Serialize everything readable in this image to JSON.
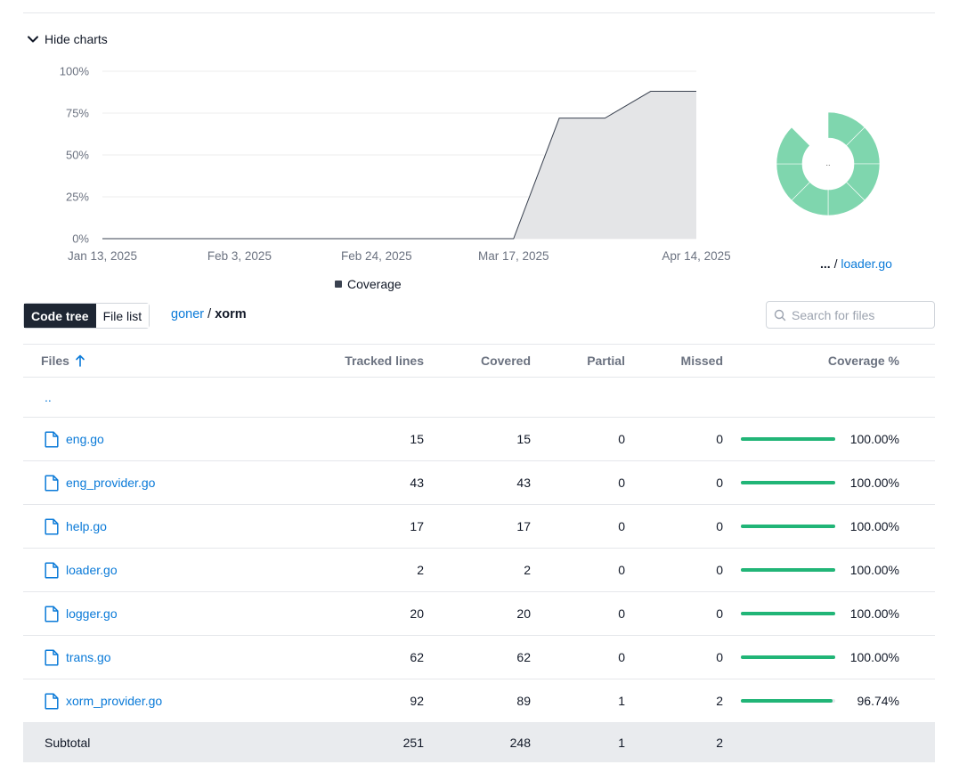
{
  "toggle_charts_label": "Hide charts",
  "chart_data": {
    "type": "area",
    "x_ticks": [
      "Jan 13, 2025",
      "Feb 3, 2025",
      "Feb 24, 2025",
      "Mar 17, 2025",
      "Apr 14, 2025"
    ],
    "x": [
      "2025-01-13",
      "2025-01-20",
      "2025-01-27",
      "2025-02-03",
      "2025-02-10",
      "2025-02-17",
      "2025-02-24",
      "2025-03-03",
      "2025-03-10",
      "2025-03-17",
      "2025-03-24",
      "2025-03-31",
      "2025-04-07",
      "2025-04-14"
    ],
    "series": [
      {
        "name": "Coverage",
        "values": [
          0,
          0,
          0,
          0,
          0,
          0,
          0,
          0,
          0,
          0,
          72,
          72,
          88,
          88
        ]
      }
    ],
    "y_ticks": [
      "0%",
      "25%",
      "50%",
      "75%",
      "100%"
    ],
    "ylim": [
      0,
      100
    ],
    "grid": true,
    "legend": "bottom-center",
    "colors": {
      "fill": "#e4e5e7",
      "line": "#3a4250",
      "grid": "#eeeeee"
    }
  },
  "sunburst": {
    "center_label": "..",
    "color": "#7fd6ae",
    "segments": 7
  },
  "selected_breadcrumb": {
    "ellipsis": "...",
    "separator": "/",
    "file": "loader.go"
  },
  "view_toggle": {
    "code_tree": "Code tree",
    "file_list": "File list"
  },
  "path": {
    "root": "goner",
    "separator": "/",
    "current": "xorm"
  },
  "search": {
    "placeholder": "Search for files"
  },
  "table": {
    "headers": {
      "files": "Files",
      "tracked": "Tracked lines",
      "covered": "Covered",
      "partial": "Partial",
      "missed": "Missed",
      "coverage": "Coverage %"
    },
    "parent_link": "..",
    "rows": [
      {
        "name": "eng.go",
        "tracked": "15",
        "covered": "15",
        "partial": "0",
        "missed": "0",
        "coverage": "100.00%",
        "fill": 1.0
      },
      {
        "name": "eng_provider.go",
        "tracked": "43",
        "covered": "43",
        "partial": "0",
        "missed": "0",
        "coverage": "100.00%",
        "fill": 1.0
      },
      {
        "name": "help.go",
        "tracked": "17",
        "covered": "17",
        "partial": "0",
        "missed": "0",
        "coverage": "100.00%",
        "fill": 1.0
      },
      {
        "name": "loader.go",
        "tracked": "2",
        "covered": "2",
        "partial": "0",
        "missed": "0",
        "coverage": "100.00%",
        "fill": 1.0
      },
      {
        "name": "logger.go",
        "tracked": "20",
        "covered": "20",
        "partial": "0",
        "missed": "0",
        "coverage": "100.00%",
        "fill": 1.0
      },
      {
        "name": "trans.go",
        "tracked": "62",
        "covered": "62",
        "partial": "0",
        "missed": "0",
        "coverage": "100.00%",
        "fill": 1.0
      },
      {
        "name": "xorm_provider.go",
        "tracked": "92",
        "covered": "89",
        "partial": "1",
        "missed": "2",
        "coverage": "96.74%",
        "fill": 0.9674
      }
    ],
    "subtotal": {
      "label": "Subtotal",
      "tracked": "251",
      "covered": "248",
      "partial": "1",
      "missed": "2"
    }
  },
  "colors": {
    "link": "#0a7ad8",
    "bar": "#21b577",
    "toggle_active": "#1e2633"
  }
}
